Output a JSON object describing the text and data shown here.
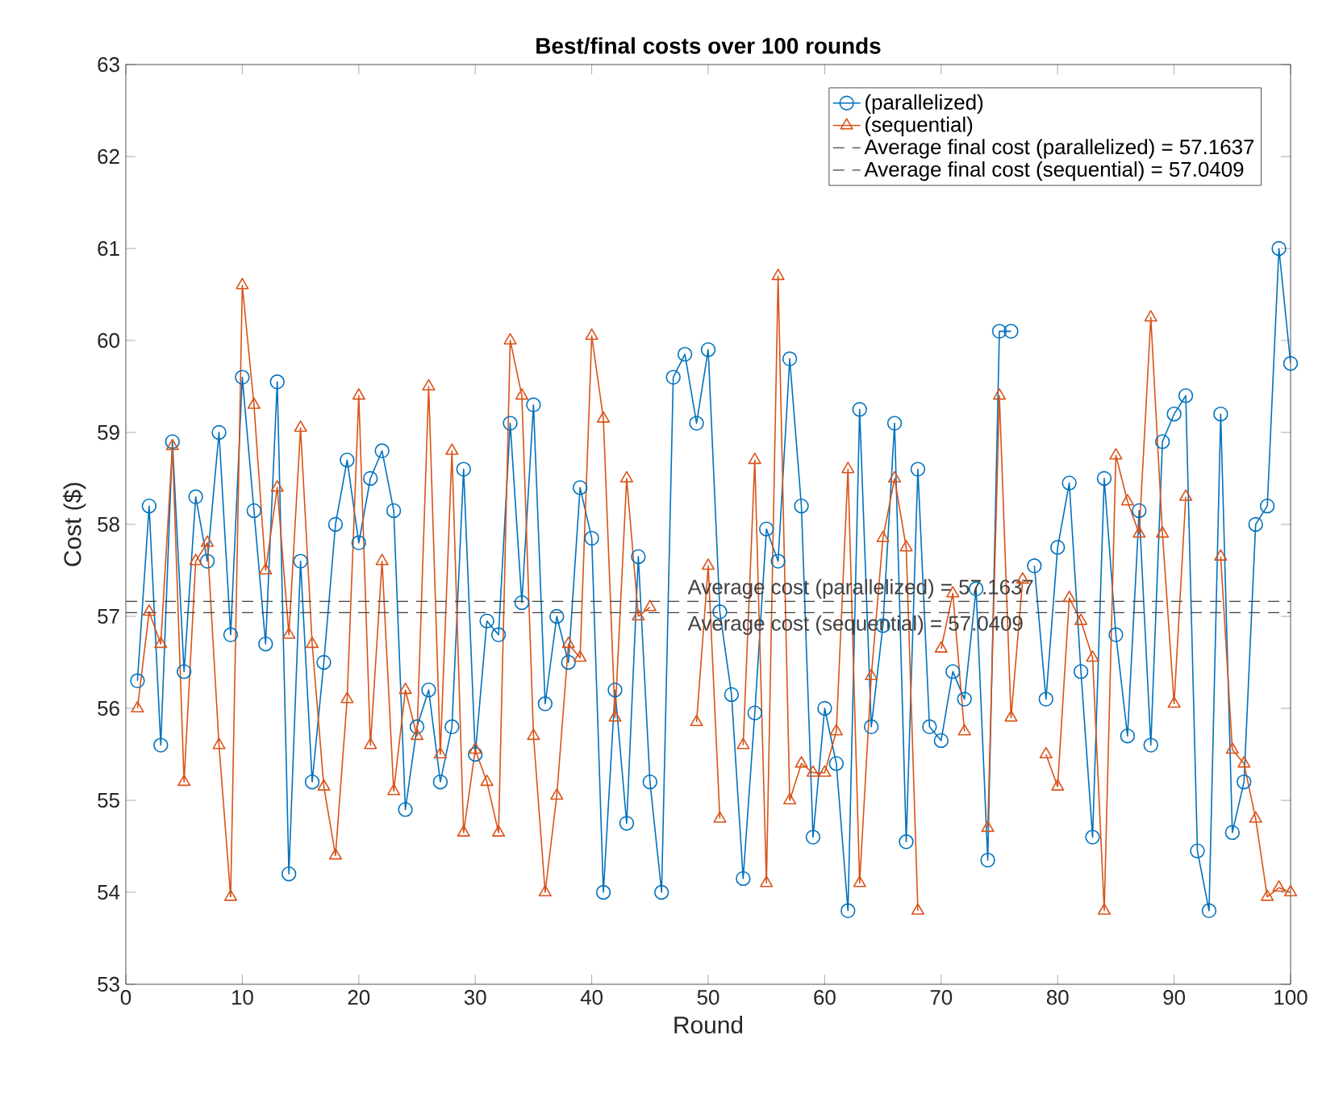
{
  "chart_data": {
    "type": "line",
    "title": "Best/final costs over 100 rounds",
    "xlabel": "Round",
    "ylabel": "Cost ($)",
    "x": [
      1,
      2,
      3,
      4,
      5,
      6,
      7,
      8,
      9,
      10,
      11,
      12,
      13,
      14,
      15,
      16,
      17,
      18,
      19,
      20,
      21,
      22,
      23,
      24,
      25,
      26,
      27,
      28,
      29,
      30,
      31,
      32,
      33,
      34,
      35,
      36,
      37,
      38,
      39,
      40,
      41,
      42,
      43,
      44,
      45,
      46,
      47,
      48,
      49,
      50,
      51,
      52,
      53,
      54,
      55,
      56,
      57,
      58,
      59,
      60,
      61,
      62,
      63,
      64,
      65,
      66,
      67,
      68,
      69,
      70,
      71,
      72,
      73,
      74,
      75,
      76,
      77,
      78,
      79,
      80,
      81,
      82,
      83,
      84,
      85,
      86,
      87,
      88,
      89,
      90,
      91,
      92,
      93,
      94,
      95,
      96,
      97,
      98,
      99,
      100
    ],
    "series": [
      {
        "name": "(parallelized)",
        "color": "#0072bd",
        "marker": "circle",
        "values": [
          56.3,
          58.2,
          55.6,
          58.9,
          56.4,
          58.3,
          57.6,
          59.0,
          56.8,
          59.6,
          58.15,
          56.7,
          59.55,
          54.2,
          57.6,
          55.2,
          56.5,
          58.0,
          58.7,
          57.8,
          58.5,
          58.8,
          58.15,
          54.9,
          55.8,
          56.2,
          55.2,
          55.8,
          58.6,
          55.5,
          56.95,
          56.8,
          59.1,
          57.15,
          59.3,
          56.05,
          57.0,
          56.5,
          58.4,
          57.85,
          54.0,
          56.2,
          54.75,
          57.65,
          55.2,
          54.0,
          59.6,
          59.85,
          59.1,
          59.9,
          57.05,
          56.15,
          54.15,
          55.95,
          57.95,
          57.6,
          59.8,
          58.2,
          54.6,
          56.0,
          55.4,
          53.8,
          59.25,
          55.8,
          56.9,
          59.1,
          54.55,
          58.6,
          55.8,
          55.65,
          56.4,
          56.1,
          57.3,
          54.35,
          60.1,
          60.1,
          null,
          57.55,
          56.1,
          57.75,
          58.45,
          56.4,
          54.6,
          58.5,
          56.8,
          55.7,
          58.15,
          55.6,
          58.9,
          59.2,
          59.4,
          54.45,
          53.8,
          59.2,
          54.65,
          55.2,
          58.0,
          58.2,
          61.0,
          59.75
        ]
      },
      {
        "name": "(sequential)",
        "color": "#d95319",
        "marker": "triangle",
        "values": [
          56.0,
          57.05,
          56.7,
          58.85,
          55.2,
          57.6,
          57.8,
          55.6,
          53.95,
          60.6,
          59.3,
          57.5,
          58.4,
          56.8,
          59.05,
          56.7,
          55.15,
          54.4,
          56.1,
          59.4,
          55.6,
          57.6,
          55.1,
          56.2,
          55.7,
          59.5,
          55.5,
          58.8,
          54.65,
          55.55,
          55.2,
          54.65,
          60.0,
          59.4,
          55.7,
          54.0,
          55.05,
          56.7,
          56.55,
          60.05,
          59.15,
          55.9,
          58.5,
          57.0,
          57.1,
          null,
          null,
          null,
          55.85,
          57.55,
          54.8,
          null,
          55.6,
          58.7,
          54.1,
          60.7,
          55.0,
          55.4,
          55.3,
          55.3,
          55.75,
          58.6,
          54.1,
          56.35,
          57.85,
          58.5,
          57.75,
          53.8,
          null,
          56.65,
          57.25,
          55.75,
          null,
          54.7,
          59.4,
          55.9,
          57.4,
          null,
          55.5,
          55.15,
          57.2,
          56.95,
          56.55,
          53.8,
          58.75,
          58.25,
          57.9,
          60.25,
          57.9,
          56.05,
          58.3,
          null,
          null,
          57.65,
          55.55,
          55.4,
          54.8,
          53.95,
          54.05,
          54.0
        ]
      }
    ],
    "ref_lines": [
      {
        "axis": "y",
        "value": 57.1637,
        "label": "Average final cost (parallelized) = 57.1637",
        "color": "#404040",
        "line_style": "dashed"
      },
      {
        "axis": "y",
        "value": 57.0409,
        "label": "Average final cost (sequential) = 57.0409",
        "color": "#404040",
        "line_style": "dashed"
      }
    ],
    "annotations": [
      {
        "text": "Average cost (parallelized) = 57.1637",
        "x": 48,
        "y": 57.1637
      },
      {
        "text": "Average cost (sequential) = 57.0409",
        "x": 48,
        "y": 57.0409
      }
    ],
    "xlim": [
      0,
      100
    ],
    "ylim": [
      53,
      63
    ],
    "xticks": [
      0,
      10,
      20,
      30,
      40,
      50,
      60,
      70,
      80,
      90,
      100
    ],
    "yticks": [
      53,
      54,
      55,
      56,
      57,
      58,
      59,
      60,
      61,
      62,
      63
    ],
    "legend": "top right"
  }
}
